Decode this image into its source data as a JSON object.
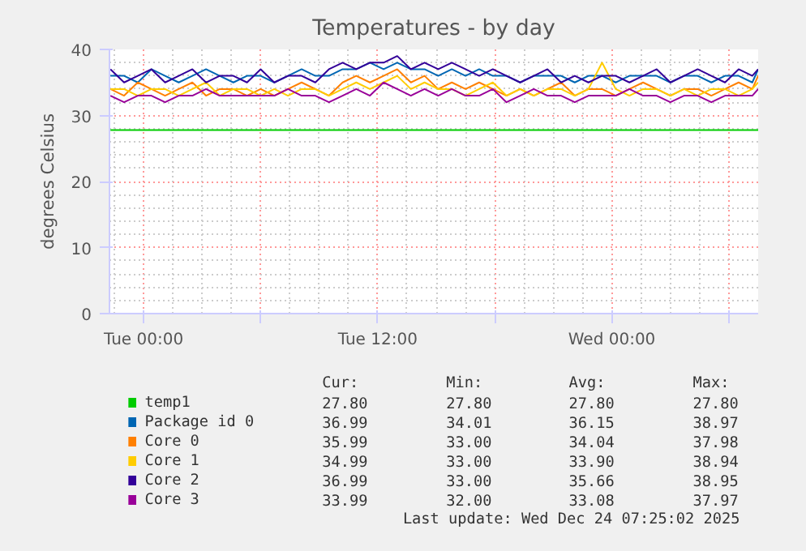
{
  "chart_data": {
    "type": "line",
    "title": "Temperatures - by day",
    "ylabel": "degrees Celsius",
    "x": [
      "2025-12-22T22:18",
      "2025-12-22T23:00",
      "2025-12-22T23:42",
      "2025-12-23T00:24",
      "2025-12-23T01:06",
      "2025-12-23T01:48",
      "2025-12-23T02:30",
      "2025-12-23T03:12",
      "2025-12-23T03:54",
      "2025-12-23T04:36",
      "2025-12-23T05:18",
      "2025-12-23T06:00",
      "2025-12-23T06:42",
      "2025-12-23T07:24",
      "2025-12-23T08:06",
      "2025-12-23T08:48",
      "2025-12-23T09:30",
      "2025-12-23T10:12",
      "2025-12-23T10:54",
      "2025-12-23T11:36",
      "2025-12-23T12:18",
      "2025-12-23T13:00",
      "2025-12-23T13:42",
      "2025-12-23T14:24",
      "2025-12-23T15:06",
      "2025-12-23T15:48",
      "2025-12-23T16:30",
      "2025-12-23T17:12",
      "2025-12-23T17:54",
      "2025-12-23T18:36",
      "2025-12-23T19:18",
      "2025-12-23T20:00",
      "2025-12-23T20:42",
      "2025-12-23T21:24",
      "2025-12-23T22:06",
      "2025-12-23T22:48",
      "2025-12-23T23:30",
      "2025-12-24T00:12",
      "2025-12-24T00:54",
      "2025-12-24T01:36",
      "2025-12-24T02:18",
      "2025-12-24T03:00",
      "2025-12-24T03:42",
      "2025-12-24T04:24",
      "2025-12-24T05:06",
      "2025-12-24T05:48",
      "2025-12-24T06:30",
      "2025-12-24T07:12",
      "2025-12-24T07:30"
    ],
    "xlim": [
      "2025-12-22T22:15",
      "2025-12-24T07:30"
    ],
    "xticks": [
      {
        "value": "2025-12-23T00:00",
        "label": "Tue 00:00"
      },
      {
        "value": "2025-12-23T06:00",
        "label": null
      },
      {
        "value": "2025-12-23T12:00",
        "label": "Tue 12:00"
      },
      {
        "value": "2025-12-23T18:00",
        "label": null
      },
      {
        "value": "2025-12-24T00:00",
        "label": "Wed 00:00"
      },
      {
        "value": "2025-12-24T06:00",
        "label": null
      }
    ],
    "ylim": [
      0,
      40
    ],
    "yticks": [
      0,
      10,
      20,
      30,
      40
    ],
    "grid": true,
    "legend": "bottom",
    "series": [
      {
        "name": "temp1",
        "color": "#00cc00",
        "x": [
          "2025-12-22T22:18",
          "2025-12-24T07:30"
        ],
        "values": [
          27.8,
          27.8
        ]
      },
      {
        "name": "Package id 0",
        "color": "#0066b3",
        "values": [
          36,
          36,
          35,
          37,
          36,
          35,
          36,
          37,
          36,
          35,
          36,
          36,
          35,
          36,
          37,
          36,
          36,
          37,
          37,
          38,
          37,
          38,
          37,
          37,
          36,
          37,
          36,
          37,
          36,
          36,
          35,
          36,
          36,
          36,
          35,
          36,
          36,
          35,
          36,
          36,
          36,
          35,
          36,
          36,
          35,
          36,
          36,
          35,
          37
        ]
      },
      {
        "name": "Core 0",
        "color": "#ff8000",
        "values": [
          34,
          33,
          35,
          34,
          33,
          34,
          35,
          33,
          34,
          34,
          33,
          34,
          33,
          34,
          35,
          34,
          33,
          35,
          36,
          35,
          36,
          37,
          35,
          36,
          34,
          35,
          34,
          35,
          34,
          33,
          34,
          33,
          34,
          35,
          33,
          34,
          34,
          33,
          34,
          35,
          34,
          33,
          34,
          34,
          33,
          34,
          35,
          34,
          36
        ]
      },
      {
        "name": "Core 1",
        "color": "#ffcc00",
        "values": [
          34,
          34,
          33,
          34,
          34,
          33,
          34,
          35,
          33,
          34,
          34,
          33,
          34,
          33,
          34,
          34,
          33,
          34,
          35,
          34,
          35,
          36,
          34,
          35,
          34,
          34,
          33,
          34,
          35,
          33,
          34,
          33,
          34,
          34,
          33,
          34,
          38,
          34,
          33,
          34,
          34,
          33,
          34,
          33,
          34,
          34,
          33,
          34,
          35
        ]
      },
      {
        "name": "Core 2",
        "color": "#330099",
        "values": [
          37,
          35,
          36,
          37,
          35,
          36,
          37,
          35,
          36,
          36,
          35,
          37,
          35,
          36,
          36,
          35,
          37,
          38,
          37,
          38,
          38,
          39,
          37,
          38,
          37,
          38,
          37,
          36,
          37,
          36,
          35,
          36,
          37,
          35,
          36,
          35,
          36,
          36,
          35,
          36,
          37,
          35,
          36,
          37,
          36,
          35,
          37,
          36,
          37
        ]
      },
      {
        "name": "Core 3",
        "color": "#990099",
        "values": [
          33,
          32,
          33,
          33,
          32,
          33,
          33,
          34,
          33,
          33,
          33,
          33,
          33,
          34,
          33,
          33,
          32,
          33,
          34,
          33,
          35,
          34,
          33,
          34,
          33,
          34,
          33,
          33,
          34,
          32,
          33,
          34,
          33,
          33,
          32,
          33,
          33,
          33,
          34,
          33,
          33,
          32,
          33,
          33,
          32,
          33,
          33,
          33,
          34
        ]
      }
    ],
    "annotations": [
      "Cur:",
      "Min:",
      "Avg:",
      "Max:",
      "27.80",
      "27.80",
      "27.80",
      "27.80",
      "36.99",
      "34.01",
      "36.15",
      "38.97",
      "35.99",
      "33.00",
      "34.04",
      "37.98",
      "34.99",
      "33.00",
      "33.90",
      "38.94",
      "36.99",
      "33.00",
      "35.66",
      "38.95",
      "33.99",
      "32.00",
      "33.08",
      "37.97",
      "Last update: Wed Dec 24 07:25:02 2025"
    ]
  }
}
